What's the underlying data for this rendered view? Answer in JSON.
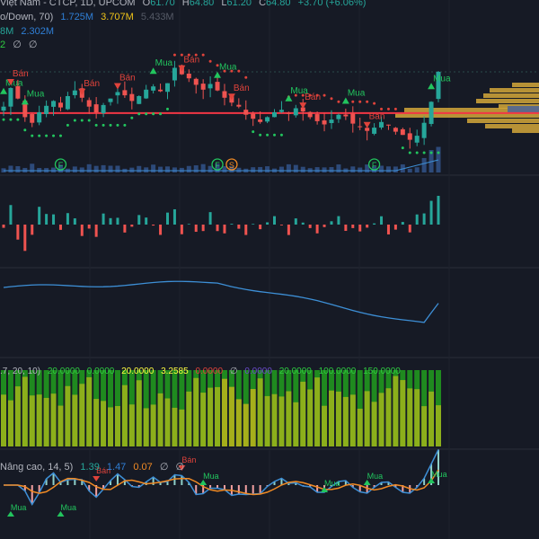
{
  "header": {
    "symbol_line": "Việt Nam - CTCP, 1D, UPCOM",
    "ohlc": {
      "o_label": "O",
      "open": "61.70",
      "h_label": "H",
      "high": "64.80",
      "l_label": "L",
      "low": "61.20",
      "c_label": "C",
      "close": "64.80",
      "change": "+3.70 (+6.06%)"
    }
  },
  "indicators": {
    "volume_updown": {
      "label": "o/Down, 70)",
      "v1": "1.725M",
      "v2": "3.707M",
      "v3": "5.433M"
    },
    "second": {
      "v0": "8M",
      "v1": "2.302M"
    },
    "third": {
      "v0": "2",
      "v1": "∅",
      "v2": "∅"
    },
    "ribbon": {
      "label": ".7, 20, 10)",
      "v1": "20.0000",
      "v2": "0.0000",
      "v3": "20.0000",
      "v4": "3.2585",
      "v5": "0.0000",
      "v6": "∅",
      "v7": "0.0000",
      "v8": "20.0000",
      "v9": "100.0000",
      "v10": "150.0000"
    },
    "oscillator": {
      "label": "Nâng cao, 14, 5)",
      "v1": "1.39",
      "v2": "1.47",
      "v3": "0.07",
      "v4": "∅",
      "v5": "∅"
    }
  },
  "signals": {
    "buy_label": "Mua",
    "sell_label": "Bán",
    "main": [
      {
        "type": "buy",
        "i": 0
      },
      {
        "type": "buy",
        "i": 3
      },
      {
        "type": "sell",
        "i": 1
      },
      {
        "type": "sell",
        "i": 11
      },
      {
        "type": "sell",
        "i": 16
      },
      {
        "type": "buy",
        "i": 21
      },
      {
        "type": "sell",
        "i": 25
      },
      {
        "type": "buy",
        "i": 30
      },
      {
        "type": "sell",
        "i": 32
      },
      {
        "type": "buy",
        "i": 40
      },
      {
        "type": "sell",
        "i": 42
      },
      {
        "type": "buy",
        "i": 48
      },
      {
        "type": "sell",
        "i": 51
      },
      {
        "type": "buy",
        "i": 60
      }
    ],
    "events": [
      {
        "label": "F",
        "i": 8
      },
      {
        "label": "F",
        "i": 30
      },
      {
        "label": "S",
        "i": 32
      },
      {
        "label": "F",
        "i": 52
      }
    ]
  },
  "chart_data": {
    "type": "candlestick",
    "close": [
      60.5,
      62.8,
      61.5,
      59.2,
      58.5,
      59.8,
      60.6,
      61.2,
      60.4,
      61.8,
      62.5,
      61.6,
      60.5,
      59.8,
      60.7,
      61.5,
      62.3,
      61.9,
      61.2,
      61.8,
      62.6,
      63.0,
      62.4,
      63.4,
      65.3,
      64.5,
      64.0,
      63.2,
      62.6,
      63.3,
      62.5,
      61.6,
      61.0,
      60.5,
      59.5,
      59.0,
      58.6,
      59.2,
      59.8,
      60.1,
      59.6,
      60.3,
      59.9,
      59.2,
      58.7,
      58.3,
      58.9,
      59.5,
      59.3,
      58.4,
      58.0,
      57.5,
      57.9,
      58.6,
      58.2,
      57.4,
      57.0,
      56.4,
      56.9,
      58.5,
      61.1,
      64.8
    ],
    "reference_level": 59.7,
    "colors": {
      "up": "#26a69a",
      "down": "#ef5350",
      "stop_up": "#22c55e",
      "stop_down": "#e0433b",
      "ref_line": "#f23645",
      "profile": "#d4a83a",
      "line": "#3d8fd6",
      "osc_fast": "#3d8fd6",
      "osc_slow": "#f08a24"
    }
  }
}
